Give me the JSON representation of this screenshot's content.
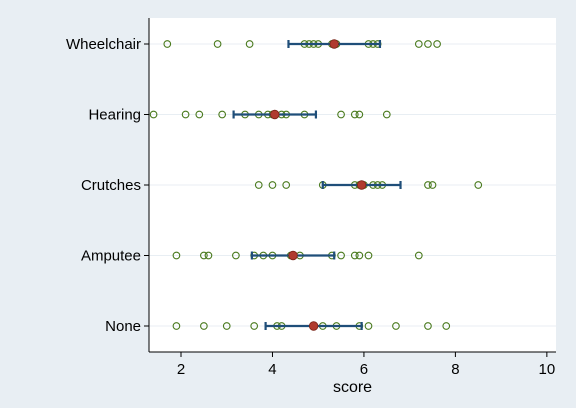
{
  "chart_data": {
    "type": "scatter",
    "xlabel": "score",
    "ylabel": "",
    "xlim": [
      1.3,
      10.2
    ],
    "xticks": [
      2,
      4,
      6,
      8,
      10
    ],
    "grid": true,
    "colors": {
      "background": "#e8eef3",
      "plot_area": "#ffffff",
      "points": "#4a7a1e",
      "ci": "#1f4e79",
      "mean": "#b03a2e"
    },
    "categories": [
      "Wheelchair",
      "Hearing",
      "Crutches",
      "Amputee",
      "None"
    ],
    "groups": [
      {
        "name": "Wheelchair",
        "points": [
          1.7,
          2.8,
          3.5,
          4.7,
          4.8,
          4.9,
          5.0,
          5.3,
          5.4,
          6.1,
          6.2,
          6.3,
          7.2,
          7.4,
          7.6
        ],
        "mean": 5.35,
        "ci": [
          4.35,
          6.35
        ]
      },
      {
        "name": "Hearing",
        "points": [
          1.4,
          2.1,
          2.4,
          2.9,
          3.4,
          3.7,
          3.9,
          4.0,
          4.2,
          4.3,
          4.7,
          5.5,
          5.8,
          5.9,
          6.5
        ],
        "mean": 4.05,
        "ci": [
          3.15,
          4.95
        ]
      },
      {
        "name": "Crutches",
        "points": [
          3.7,
          4.0,
          4.3,
          5.1,
          5.8,
          5.9,
          6.0,
          6.2,
          6.3,
          6.4,
          7.4,
          7.5,
          8.5
        ],
        "mean": 5.95,
        "ci": [
          5.1,
          6.8
        ]
      },
      {
        "name": "Amputee",
        "points": [
          1.9,
          2.5,
          2.6,
          3.2,
          3.6,
          3.8,
          4.0,
          4.4,
          4.6,
          5.3,
          5.5,
          5.8,
          5.9,
          6.1,
          7.2
        ],
        "mean": 4.45,
        "ci": [
          3.55,
          5.35
        ]
      },
      {
        "name": "None",
        "points": [
          1.9,
          2.5,
          3.0,
          3.6,
          4.1,
          4.2,
          4.9,
          5.1,
          5.4,
          5.9,
          6.1,
          6.7,
          7.4,
          7.8
        ],
        "mean": 4.9,
        "ci": [
          3.85,
          5.95
        ]
      }
    ]
  }
}
